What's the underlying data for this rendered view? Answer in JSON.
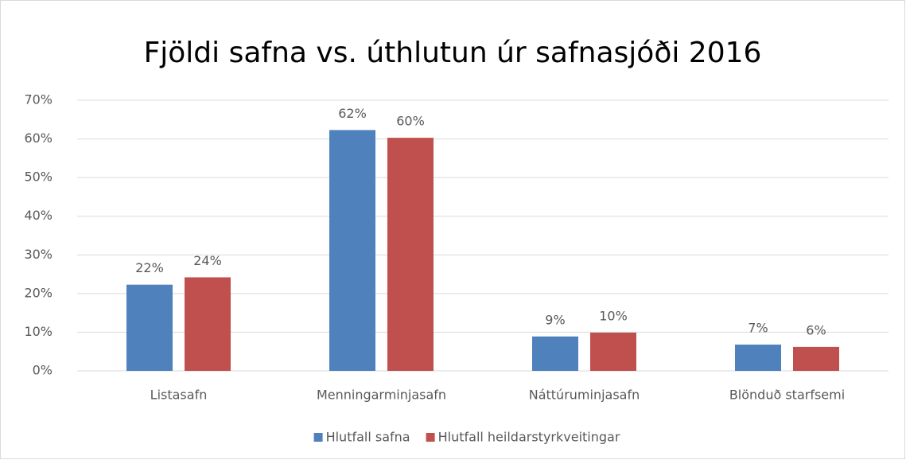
{
  "chart_data": {
    "type": "bar",
    "title": "Fjöldi safna vs. úthlutun úr safnasjóði 2016",
    "categories": [
      "Listasafn",
      "Menningarminjasafn",
      "Náttúruminjasafn",
      "Blönduð starfsemi"
    ],
    "series": [
      {
        "name": "Hlutfall safna",
        "color": "#4f81bd",
        "values": [
          22.3,
          62.3,
          8.9,
          6.8
        ],
        "value_labels": [
          "22%",
          "62%",
          "9%",
          "7%"
        ]
      },
      {
        "name": "Hlutfall heildarstyrkveitingar",
        "color": "#c0504d",
        "values": [
          24.2,
          60.3,
          9.9,
          6.2
        ],
        "value_labels": [
          "24%",
          "60%",
          "10%",
          "6%"
        ]
      }
    ],
    "ylim": [
      0,
      70
    ],
    "yticks": [
      {
        "value": 0,
        "label": "0%"
      },
      {
        "value": 10,
        "label": "10%"
      },
      {
        "value": 20,
        "label": "20%"
      },
      {
        "value": 30,
        "label": "30%"
      },
      {
        "value": 40,
        "label": "40%"
      },
      {
        "value": 50,
        "label": "50%"
      },
      {
        "value": 60,
        "label": "60%"
      },
      {
        "value": 70,
        "label": "70%"
      }
    ],
    "grid": true,
    "legend": "bottom"
  }
}
